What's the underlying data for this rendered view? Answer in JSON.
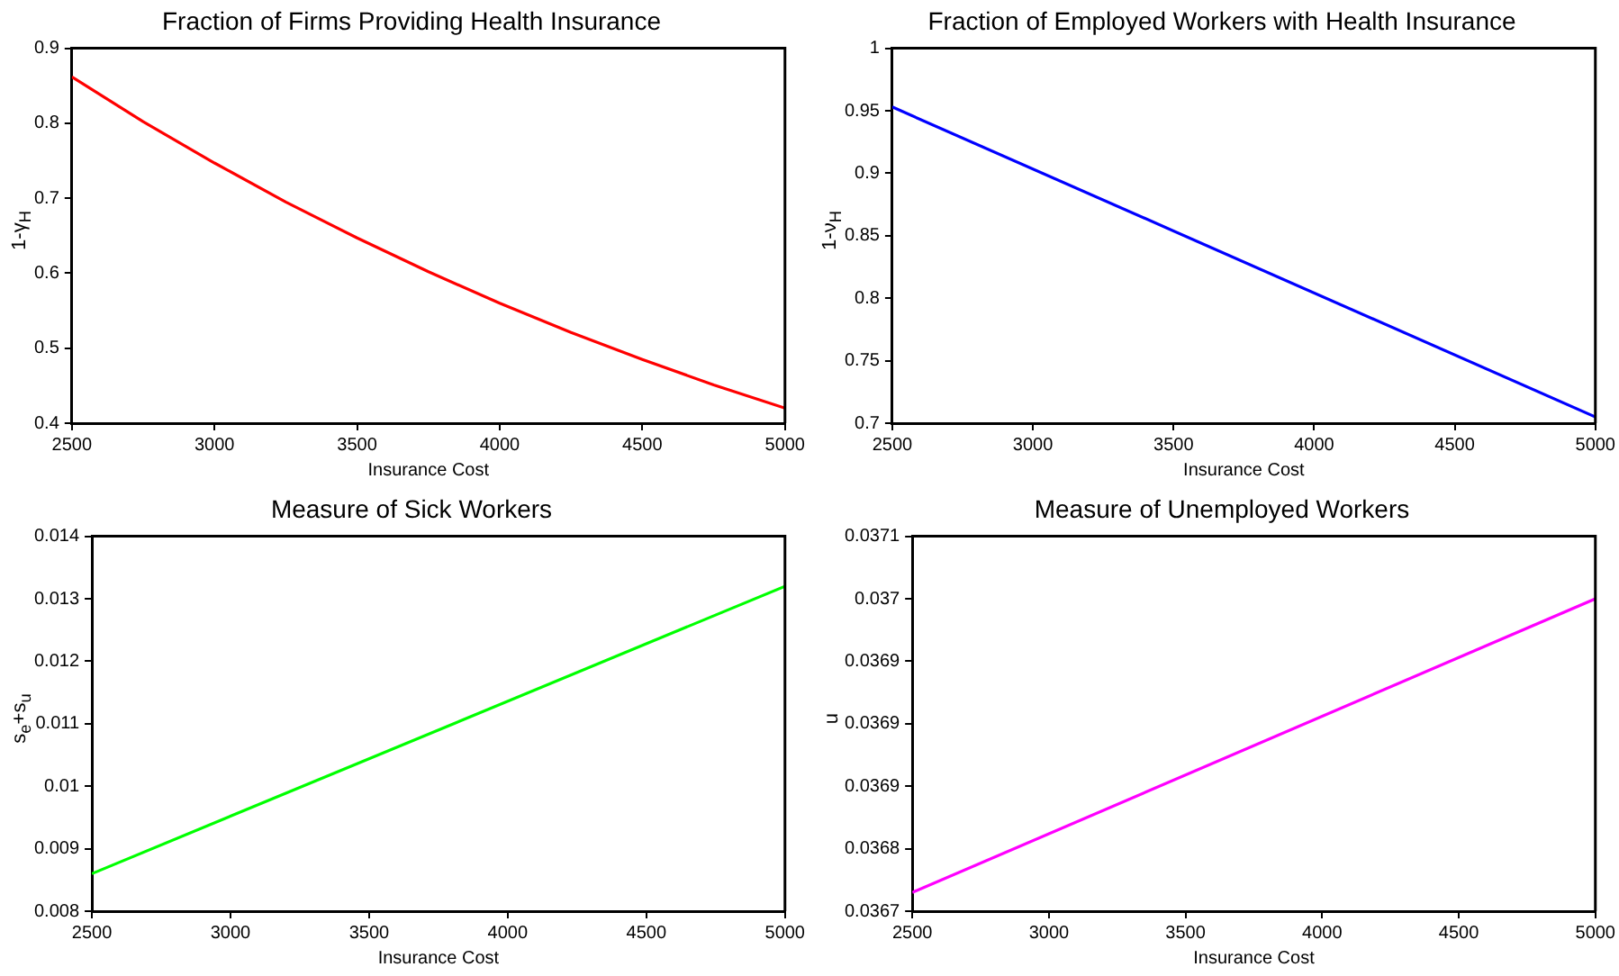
{
  "chart_data": [
    {
      "type": "line",
      "title": "Fraction of Firms Providing Health Insurance",
      "xlabel": "Insurance Cost",
      "ylabel": "1-γ$_{H}$",
      "x": [
        2500,
        2750,
        3000,
        3250,
        3500,
        3750,
        4000,
        4250,
        4500,
        4750,
        5000
      ],
      "series": [
        {
          "color": "#ff0000",
          "values": [
            0.862,
            0.802,
            0.747,
            0.695,
            0.647,
            0.602,
            0.56,
            0.521,
            0.485,
            0.451,
            0.42
          ]
        }
      ],
      "xlim": [
        2500,
        5000
      ],
      "xticks": [
        2500,
        3000,
        3500,
        4000,
        4500,
        5000
      ],
      "ylim": [
        0.4,
        0.9
      ],
      "yticks": [
        0.4,
        0.5,
        0.6,
        0.7,
        0.8,
        0.9
      ],
      "grid": false,
      "legend": false
    },
    {
      "type": "line",
      "title": "Fraction of Employed Workers with Health Insurance",
      "xlabel": "Insurance Cost",
      "ylabel": "1-ν$_{H}$",
      "x": [
        2500,
        5000
      ],
      "series": [
        {
          "color": "#0000ff",
          "values": [
            0.953,
            0.705
          ]
        }
      ],
      "xlim": [
        2500,
        5000
      ],
      "xticks": [
        2500,
        3000,
        3500,
        4000,
        4500,
        5000
      ],
      "ylim": [
        0.7,
        1
      ],
      "yticks": [
        0.7,
        0.75,
        0.8,
        0.85,
        0.9,
        0.95,
        1
      ],
      "grid": false,
      "legend": false
    },
    {
      "type": "line",
      "title": "Measure of Sick Workers",
      "xlabel": "Insurance Cost",
      "ylabel": "s$_{e}$+s$_{u}$",
      "x": [
        2500,
        5000
      ],
      "series": [
        {
          "color": "#00ff00",
          "values": [
            0.0086,
            0.0132
          ]
        }
      ],
      "xlim": [
        2500,
        5000
      ],
      "xticks": [
        2500,
        3000,
        3500,
        4000,
        4500,
        5000
      ],
      "ylim": [
        0.008,
        0.014
      ],
      "yticks": [
        0.008,
        0.009,
        0.01,
        0.011,
        0.012,
        0.013,
        0.014
      ],
      "grid": false,
      "legend": false
    },
    {
      "type": "line",
      "title": "Measure of Unemployed Workers",
      "xlabel": "Insurance Cost",
      "ylabel": "u",
      "x": [
        2500,
        5000
      ],
      "series": [
        {
          "color": "#ff00ff",
          "values": [
            0.036765,
            0.037
          ]
        }
      ],
      "xlim": [
        2500,
        5000
      ],
      "xticks": [
        2500,
        3000,
        3500,
        4000,
        4500,
        5000
      ],
      "ylim": [
        0.03675,
        0.03705
      ],
      "yticks": [
        {
          "value": 0.03675,
          "label": "0.0367"
        },
        {
          "value": 0.0368,
          "label": "0.0368"
        },
        {
          "value": 0.03685,
          "label": "0.0369"
        },
        {
          "value": 0.0369,
          "label": "0.0369"
        },
        {
          "value": 0.03695,
          "label": "0.0369"
        },
        {
          "value": 0.037,
          "label": "0.037"
        },
        {
          "value": 0.03705,
          "label": "0.0371"
        }
      ],
      "grid": false,
      "legend": false
    }
  ]
}
